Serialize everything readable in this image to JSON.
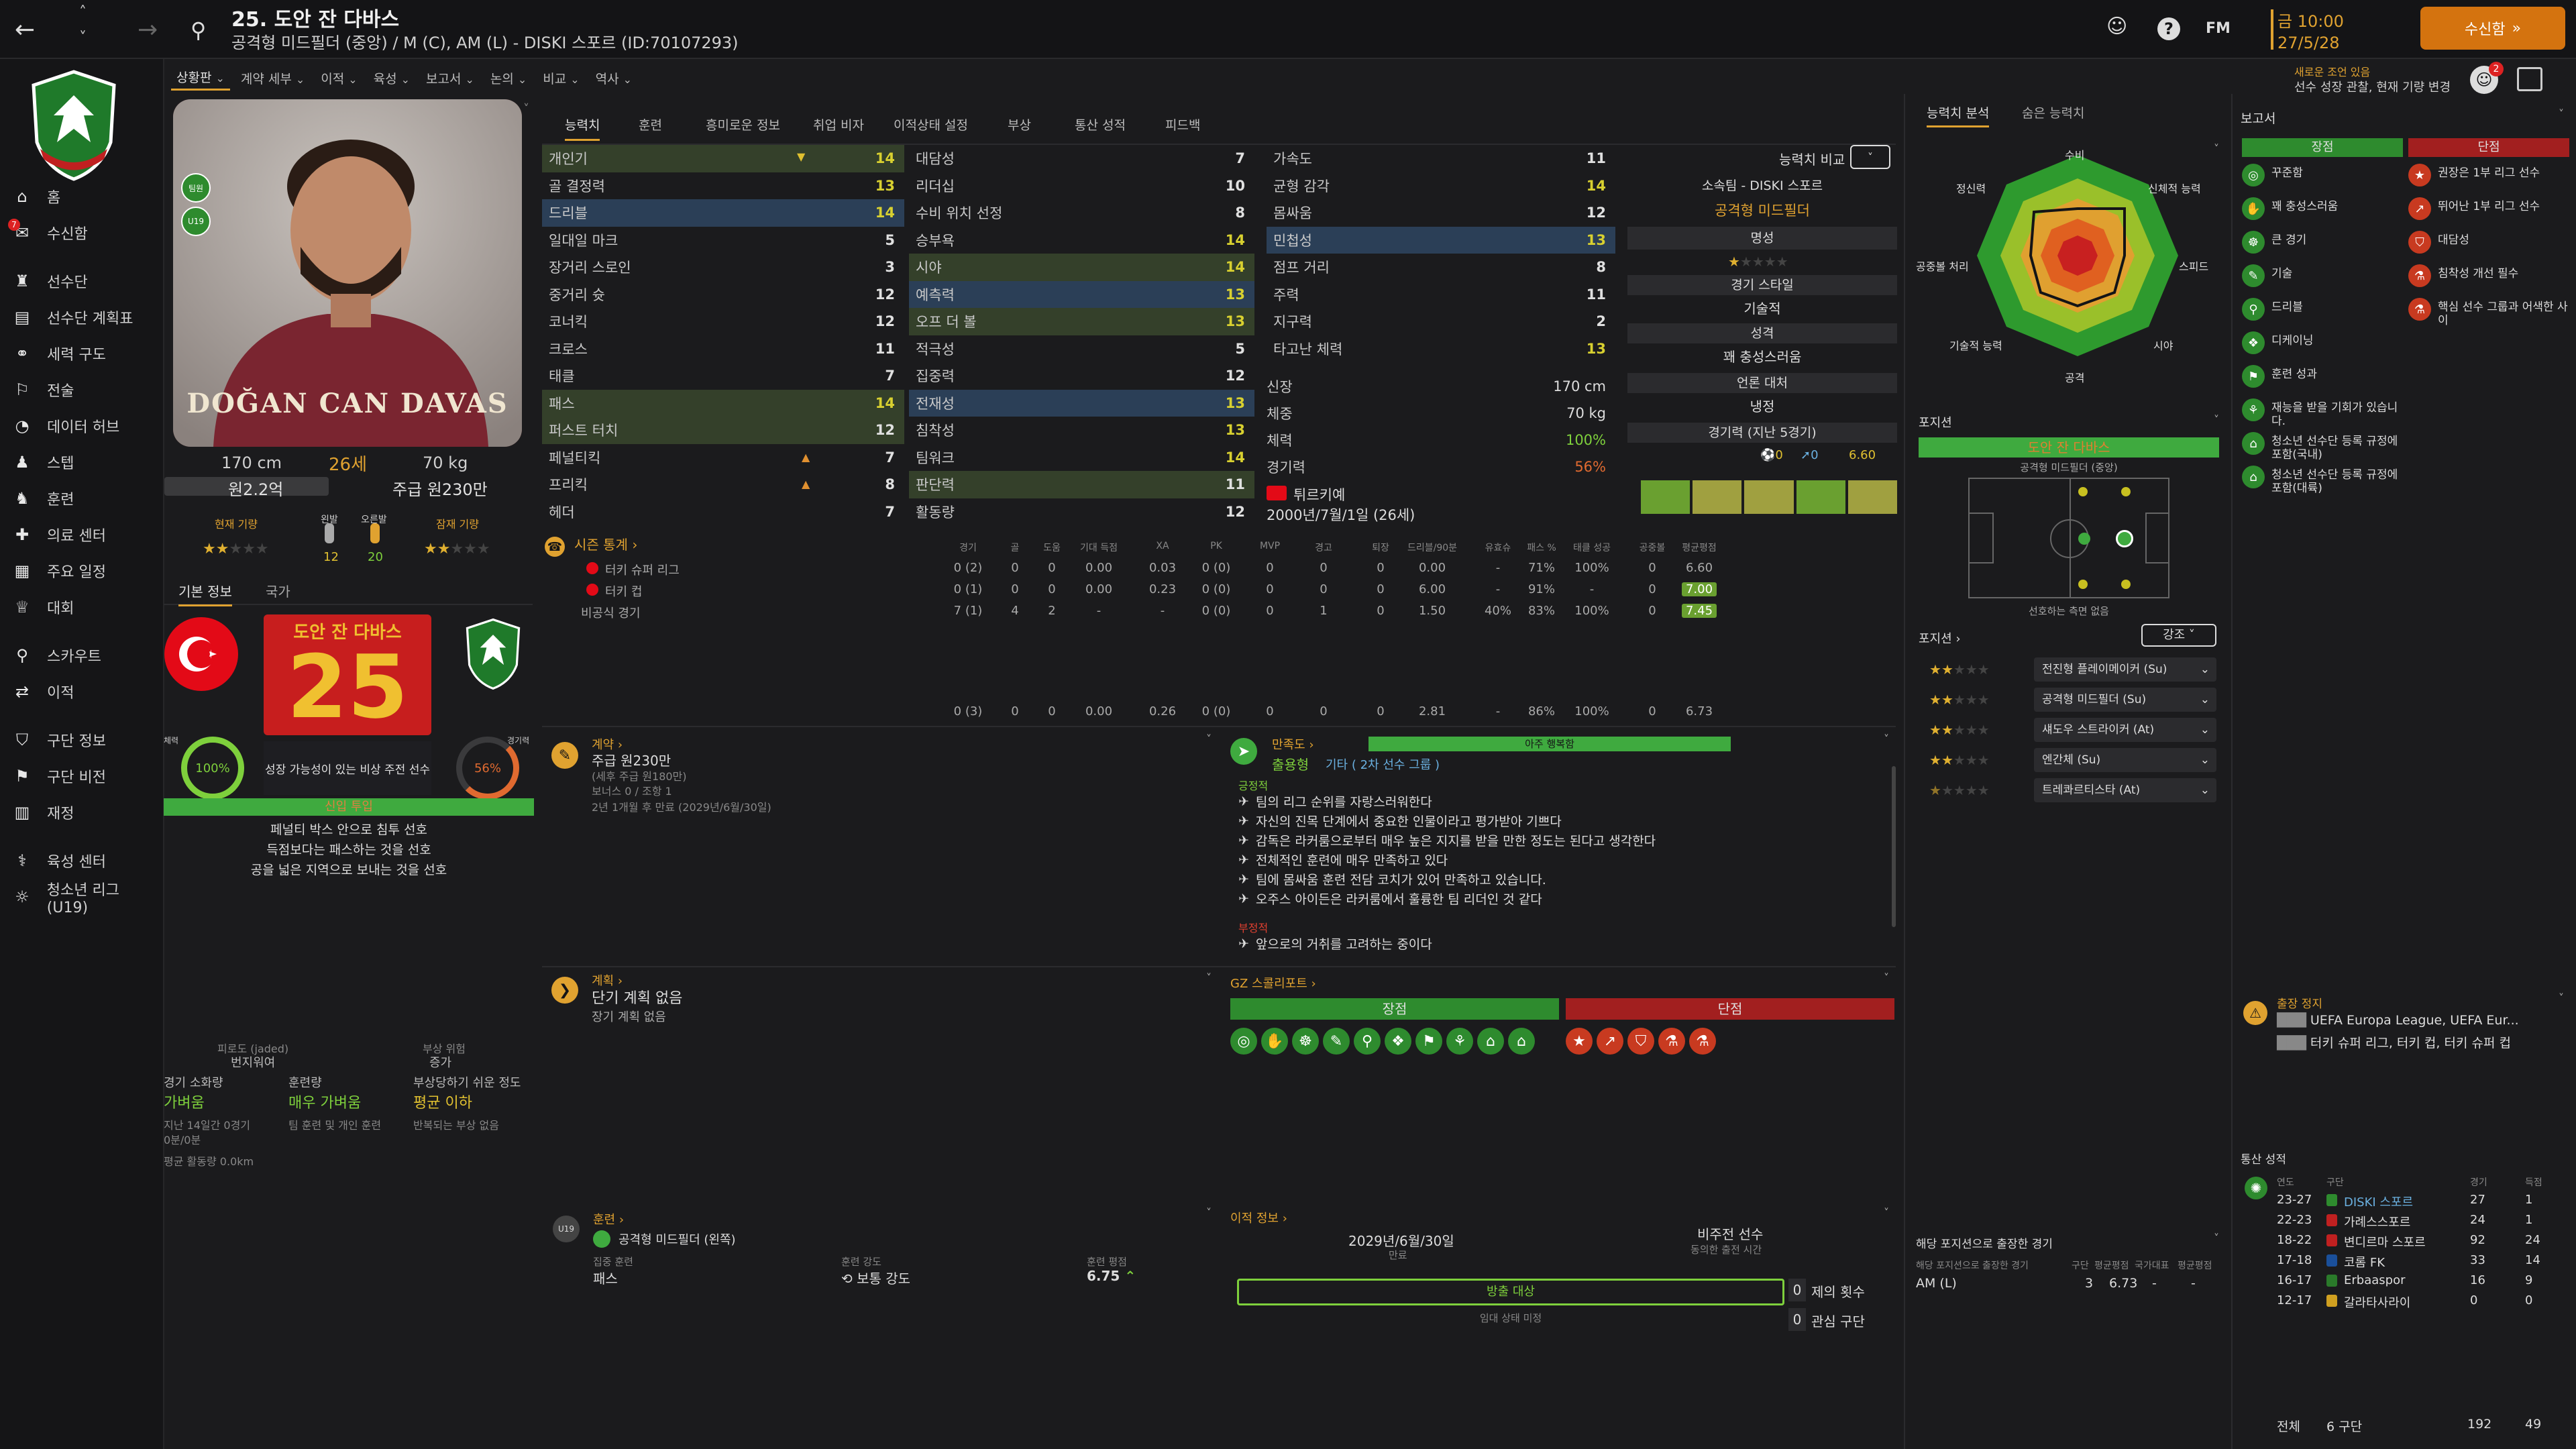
{
  "colors": {
    "accent": "#e0a230",
    "good": "#7ed03c",
    "bad": "#e04030",
    "turkey_red": "#e30a17",
    "club_green": "#2e8b2e"
  },
  "topbar": {
    "title": "25. 도안 잔 다바스",
    "subtitle": "공격형 미드필더 (중앙) / M (C), AM (L) - DISKI 스포르 (ID:70107293)",
    "fm_label": "FM",
    "date_time": "금 10:00",
    "date": "27/5/28",
    "continue_label": "수신함",
    "notice_line1": "새로운 조언 있음",
    "notice_line2": "선수 성장 관찰, 현재 기량 변경",
    "inbox_count": "2"
  },
  "leftnav": {
    "items": [
      {
        "label": "홈",
        "icon": "home-icon"
      },
      {
        "label": "수신함",
        "icon": "inbox-icon",
        "badge": "7"
      },
      {
        "label": "선수단",
        "icon": "shirt-icon"
      },
      {
        "label": "선수단 계획표",
        "icon": "clipboard-icon"
      },
      {
        "label": "세력 구도",
        "icon": "network-icon"
      },
      {
        "label": "전술",
        "icon": "tactics-icon"
      },
      {
        "label": "데이터 허브",
        "icon": "data-hub-icon"
      },
      {
        "label": "스텝",
        "icon": "staff-icon"
      },
      {
        "label": "훈련",
        "icon": "training-icon"
      },
      {
        "label": "의료 센터",
        "icon": "medical-icon"
      },
      {
        "label": "주요 일정",
        "icon": "calendar-icon"
      },
      {
        "label": "대회",
        "icon": "trophy-icon"
      },
      {
        "label": "스카우트",
        "icon": "scout-icon"
      },
      {
        "label": "이적",
        "icon": "transfer-icon"
      },
      {
        "label": "구단 정보",
        "icon": "club-info-icon"
      },
      {
        "label": "구단 비전",
        "icon": "vision-icon"
      },
      {
        "label": "재정",
        "icon": "finance-icon"
      },
      {
        "label": "육성 센터",
        "icon": "dev-centre-icon"
      },
      {
        "label": "청소년 리그 (U19)",
        "icon": "youth-icon"
      }
    ]
  },
  "submenu": [
    "상황판",
    "계약 세부",
    "이적",
    "육성",
    "보고서",
    "논의",
    "비교",
    "역사"
  ],
  "player": {
    "name_card": "DOĞAN CAN DAVAS",
    "height": "170 cm",
    "age": "26세",
    "weight": "70 kg",
    "value": "원2.2억",
    "wage": "주급 원230만",
    "ability_label": "현재 기량",
    "potential_label": "잠재 기량",
    "left_foot_label": "왼발",
    "right_foot_label": "오른발",
    "left_foot_val": "12",
    "right_foot_val": "20",
    "ca_stars": 2.0,
    "pa_stars": 2.0,
    "badge_top": "팀원",
    "badge_mid": "U19",
    "tabs": [
      "기본 정보",
      "국가"
    ],
    "big_name": "도안 잔 다바스",
    "number": "25",
    "fitness_label": "체력",
    "fitness": "100%",
    "sharpness_label": "경기력",
    "sharpness": "56%",
    "growth_text": "성장 가능성이 있는 비상 주전 선수",
    "status_bar": "신입 투입",
    "traits": [
      "페널티 박스 안으로 침투 선호",
      "득점보다는 패스하는 것을 선호",
      "공을 넓은 지역으로 보내는 것을 선호"
    ],
    "injury": {
      "left_title": "피로도 (jaded)",
      "left_sub": "번지워여",
      "mid_title": "",
      "right_title": "부상 위험",
      "right_sub": "증가",
      "load_label": "경기 소화량",
      "load_val": "가벼움",
      "train_label": "훈련량",
      "train_val": "매우 가벼움",
      "risk_label": "부상당하기 쉬운 정도",
      "risk_val": "평균 이하",
      "load_note": "지난 14일간 0경기",
      "load_note2": "0분/0분",
      "train_note": "팀 훈련 및 개인 훈련",
      "risk_note": "반복되는 부상 없음",
      "distance": "평균 활동량 0.0km"
    }
  },
  "center_tabs": [
    "능력치",
    "훈련",
    "흥미로운 정보",
    "취업 비자",
    "이적상태 설정",
    "부상",
    "통산 성적",
    "피드백"
  ],
  "attributes": {
    "col1": [
      {
        "name": "개인기",
        "val": "14",
        "hl": "hl2"
      },
      {
        "name": "골 결정력",
        "val": "13"
      },
      {
        "name": "드리블",
        "val": "14",
        "hl": "hl"
      },
      {
        "name": "일대일 마크",
        "val": "5"
      },
      {
        "name": "장거리 스로인",
        "val": "3"
      },
      {
        "name": "중거리 슛",
        "val": "12"
      },
      {
        "name": "코너킥",
        "val": "12"
      },
      {
        "name": "크로스",
        "val": "11"
      },
      {
        "name": "태클",
        "val": "7"
      },
      {
        "name": "패스",
        "val": "14",
        "hl": "hl2"
      },
      {
        "name": "퍼스트 터치",
        "val": "12",
        "hl": "hl2"
      },
      {
        "name": "페널티킥",
        "val": "7"
      },
      {
        "name": "프리킥",
        "val": "8"
      },
      {
        "name": "헤더",
        "val": "7"
      }
    ],
    "col2": [
      {
        "name": "대담성",
        "val": "7"
      },
      {
        "name": "리더십",
        "val": "10"
      },
      {
        "name": "수비 위치 선정",
        "val": "8"
      },
      {
        "name": "승부욕",
        "val": "14"
      },
      {
        "name": "시야",
        "val": "14",
        "hl": "hl2"
      },
      {
        "name": "예측력",
        "val": "13",
        "hl": "hl"
      },
      {
        "name": "오프 더 볼",
        "val": "13",
        "hl": "hl2"
      },
      {
        "name": "적극성",
        "val": "5"
      },
      {
        "name": "집중력",
        "val": "12"
      },
      {
        "name": "전재성",
        "val": "13",
        "hl": "hl"
      },
      {
        "name": "침착성",
        "val": "13"
      },
      {
        "name": "팀워크",
        "val": "14"
      },
      {
        "name": "판단력",
        "val": "11",
        "hl": "hl2"
      },
      {
        "name": "활동량",
        "val": "12"
      }
    ],
    "col3": [
      {
        "name": "가속도",
        "val": "11"
      },
      {
        "name": "균형 감각",
        "val": "14"
      },
      {
        "name": "몸싸움",
        "val": "12"
      },
      {
        "name": "민첩성",
        "val": "13",
        "hl": "hl"
      },
      {
        "name": "점프 거리",
        "val": "8"
      },
      {
        "name": "주력",
        "val": "11"
      },
      {
        "name": "지구력",
        "val": "2"
      },
      {
        "name": "타고난 체력",
        "val": "13"
      }
    ],
    "phys": [
      {
        "label": "신장",
        "val": "170 cm"
      },
      {
        "label": "체중",
        "val": "70 kg"
      },
      {
        "label": "체력",
        "val": "100%"
      },
      {
        "label": "경기력",
        "val": "56%"
      }
    ],
    "nation": "튀르키예",
    "dob": "2000년/7월/1일 (26세)"
  },
  "compare": {
    "label": "능력치 비교",
    "club_line": "소속팀 - DISKI 스포르",
    "position": "공격형 미드필더",
    "fame_label": "명성",
    "style_label": "경기 스타일",
    "style_val": "기술적",
    "personality_label": "성격",
    "personality_val": "꽤 충성스러움",
    "media_label": "언론 대처",
    "media_val": "냉정",
    "form_label": "경기력 (지난 5경기)",
    "goals": "0",
    "assists": "0",
    "rating": "6.60",
    "fame_stars": 1
  },
  "season": {
    "title": "시즌 통계",
    "headers": [
      "경기",
      "골",
      "도움",
      "기대 득점",
      "XA",
      "PK",
      "MVP",
      "경고",
      "퇴장",
      "드리블/90분",
      "유효슈",
      "패스 %",
      "태클 성공",
      "공중볼",
      "평균평점"
    ],
    "rows": [
      {
        "comp": "터키 슈퍼 리그",
        "vals": [
          "0 (2)",
          "0",
          "0",
          "0.00",
          "0.03",
          "0 (0)",
          "0",
          "0",
          "0",
          "0.00",
          "-",
          "71%",
          "100%",
          "0",
          "6.60"
        ]
      },
      {
        "comp": "터키 컵",
        "vals": [
          "0 (1)",
          "0",
          "0",
          "0.00",
          "0.23",
          "0 (0)",
          "0",
          "0",
          "0",
          "6.00",
          "-",
          "91%",
          "-",
          "0",
          "7.00"
        ]
      },
      {
        "comp": "비공식 경기",
        "vals": [
          "7 (1)",
          "4",
          "2",
          "-",
          "-",
          "0 (0)",
          "0",
          "1",
          "0",
          "1.50",
          "40%",
          "83%",
          "100%",
          "0",
          "7.45"
        ]
      }
    ],
    "totals": [
      "0 (3)",
      "0",
      "0",
      "0.00",
      "0.26",
      "0 (0)",
      "0",
      "0",
      "0",
      "2.81",
      "-",
      "86%",
      "100%",
      "0",
      "6.73"
    ]
  },
  "contract": {
    "title": "계약",
    "wage": "주급 원230만",
    "sub1": "(세후 주급 원180만)",
    "sub2": "보너스 0 / 조항 1",
    "expiry": "2년 1개월 후 만료 (2029년/6월/30일)"
  },
  "satisfaction": {
    "title": "만족도",
    "bar": "아주 행복함",
    "role": "출용형",
    "role_extra": "기타 ( 2차 선수 그룹 )",
    "pos_title": "긍정적",
    "positives": [
      "팀의 리그 순위를 자랑스러워한다",
      "자신의 진목 단계에서 중요한 인물이라고 평가받아 기쁘다",
      "감독은 라커룸으로부터 매우 높은 지지를 받을 만한 정도는 된다고 생각한다",
      "전체적인 훈련에 매우 만족하고 있다",
      "팀에 몸싸움 훈련 전담 코치가 있어 만족하고 있습니다.",
      "오주스 아이든은 라커룸에서 훌륭한 팀 리더인 것 같다"
    ],
    "neg_title": "부정적",
    "negatives": [
      "앞으로의 거취를 고려하는 중이다"
    ]
  },
  "plans": {
    "title": "계획",
    "line1": "단기 계획 없음",
    "line2": "장기 계획 없음"
  },
  "gz": {
    "title": "GZ 스콜리포트",
    "strengths_label": "장점",
    "weaknesses_label": "단점"
  },
  "training": {
    "title": "훈련",
    "focus": "공격형 미드필더 (왼쪽)",
    "extra_label": "집중 훈련",
    "extra_val": "패스",
    "intensity_label": "훈련 강도",
    "intensity_val": "보통 강도",
    "rating_label": "훈련 평점",
    "rating_val": "6.75"
  },
  "transfer": {
    "title": "이적 정보",
    "expiry": "2029년/6월/30일",
    "expiry_label": "만료",
    "status_label": "비주전 선수",
    "status_sub": "동의한 출전 시간",
    "listed": "방출 대상",
    "listed_sub": "임대 상태 미정",
    "offers_val": "0",
    "offers_label": "제의 횟수",
    "clubs_val": "0",
    "clubs_label": "관심 구단"
  },
  "analysis": {
    "tabs": [
      "능력치 분석",
      "숨은 능력치"
    ],
    "labels": [
      "수비",
      "신체적 능력",
      "스피드",
      "시야",
      "공격",
      "기술적 능력",
      "공중볼 처리",
      "정신력"
    ]
  },
  "positions": {
    "title": "포지션",
    "player_line": "도안 잔 다바스",
    "player_pos": "공격형 미드필더 (중앙)",
    "pitch_note": "선호하는 측면 없음",
    "roles_title": "포지션",
    "roles_btn": "강조",
    "roles": [
      {
        "name": "전진형 플레이메이커 (Su)",
        "stars": 2.0
      },
      {
        "name": "공격형 미드필더 (Su)",
        "stars": 2.0
      },
      {
        "name": "섀도우 스트라이커 (At)",
        "stars": 2.0
      },
      {
        "name": "엔간체 (Su)",
        "stars": 2.0
      },
      {
        "name": "트레콰르티스타 (At)",
        "stars": 0.5
      }
    ],
    "played_title": "해당 포지션으로 출장한 경기",
    "played_header": [
      "해당 포지션으로 출장한 경기",
      "구단",
      "평균평점",
      "국가대표",
      "평균평점"
    ],
    "played_row": [
      "AM (L)",
      "3",
      "6.73",
      "-",
      "-"
    ]
  },
  "report": {
    "title": "보고서",
    "pros_label": "장점",
    "cons_label": "단점",
    "pros": [
      "꾸준함",
      "꽤 충성스러움",
      "큰 경기",
      "기술",
      "드리블",
      "디케이닝",
      "훈련 성과",
      "재능을 받을 기회가 있습니다.",
      "청소년 선수단 등록 규정에 포함(국내)",
      "청소년 선수단 등록 규정에 포함(대륙)"
    ],
    "cons": [
      "권장은 1부 리그 선수",
      "뛰어난 1부 리그 선수",
      "대담성",
      "침착성 개선 필수",
      "핵심 선수 그룹과 어색한 사이"
    ]
  },
  "suspension": {
    "title": "출장 정지",
    "line1": "UEFA Europa League, UEFA Eur...",
    "line2": "터키 슈퍼 리그, 터키 컵, 터키 슈퍼 컵"
  },
  "career": {
    "title": "통산 성적",
    "headers": [
      "연도",
      "구단",
      "경기",
      "득점"
    ],
    "rows": [
      {
        "year": "23-27",
        "club": "DISKI 스포르",
        "apps": "27",
        "goals": "1"
      },
      {
        "year": "22-23",
        "club": "가례스스포르",
        "apps": "24",
        "goals": "1"
      },
      {
        "year": "18-22",
        "club": "변디르마 스포르",
        "apps": "92",
        "goals": "24"
      },
      {
        "year": "17-18",
        "club": "코롬 FK",
        "apps": "33",
        "goals": "14"
      },
      {
        "year": "16-17",
        "club": "Erbaaspor",
        "apps": "16",
        "goals": "9"
      },
      {
        "year": "12-17",
        "club": "갈라타사라이",
        "apps": "0",
        "goals": "0"
      }
    ],
    "total_label": "전체",
    "total_clubs": "6 구단",
    "total_apps": "192",
    "total_goals": "49"
  }
}
